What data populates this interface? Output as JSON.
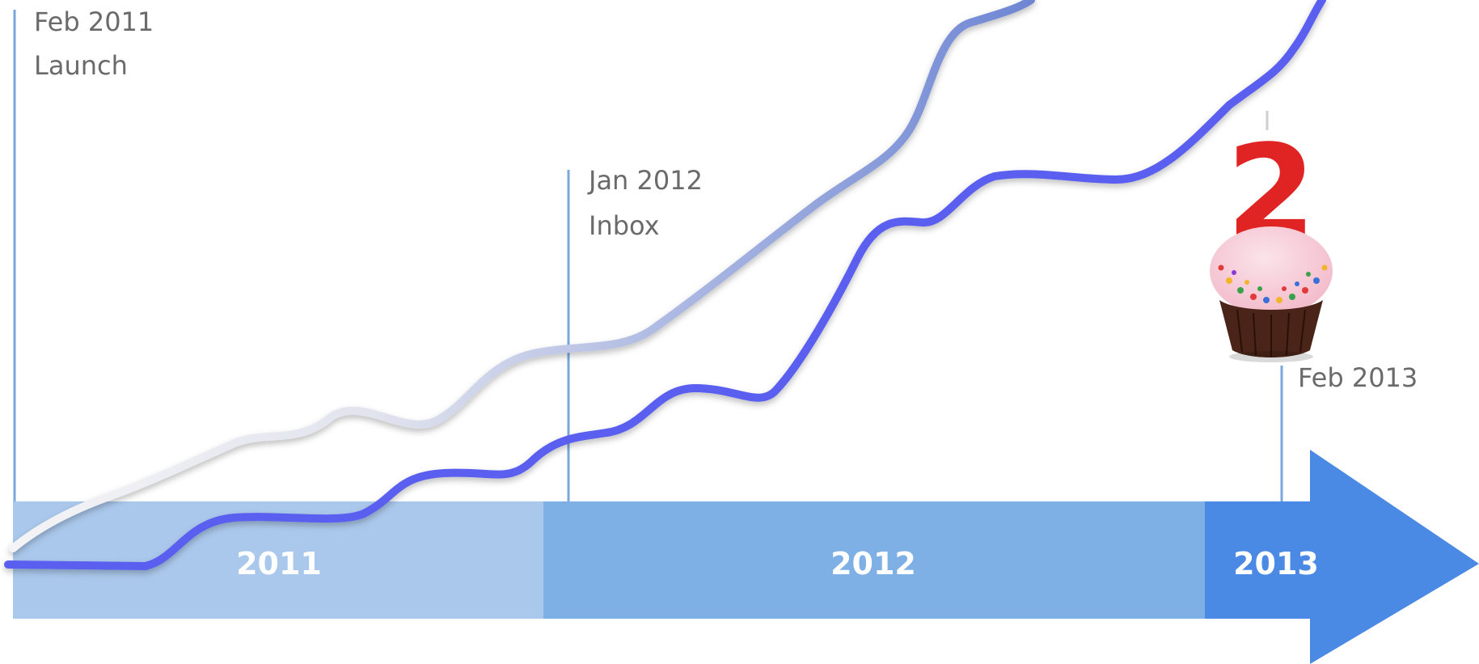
{
  "timeline": {
    "years": [
      {
        "label": "2011",
        "color": "#aac8ec"
      },
      {
        "label": "2012",
        "color": "#7eb0e6"
      },
      {
        "label": "2013",
        "color": "#4a8ae4"
      }
    ],
    "arrow_color": "#4a8ae4"
  },
  "milestones": [
    {
      "date": "Feb 2011",
      "label": "Launch"
    },
    {
      "date": "Jan 2012",
      "label": "Inbox"
    },
    {
      "date": "Feb 2013",
      "label": ""
    }
  ],
  "curves": {
    "upper_color_start": "#f4f4f6",
    "upper_color_end": "#6e86d4",
    "lower_color": "#5a5ff0"
  },
  "milestone_line_color": "#7aa7dc",
  "cupcake": {
    "candle_number": "2",
    "candle_color": "#e02424",
    "frosting_color": "#f2b8c8",
    "cake_color": "#4a2418"
  }
}
